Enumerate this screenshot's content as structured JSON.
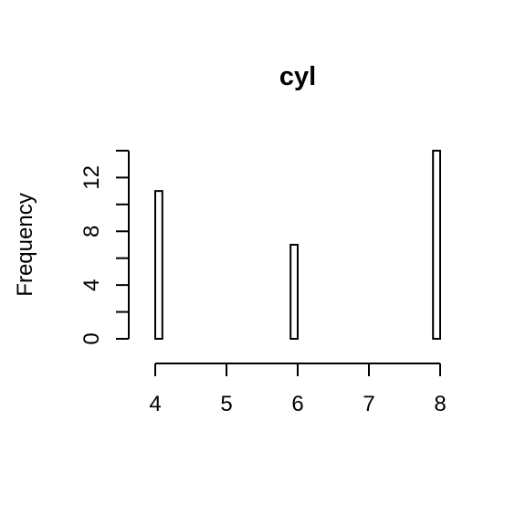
{
  "chart_data": {
    "type": "bar",
    "title": "cyl",
    "xlabel": "",
    "ylabel": "Frequency",
    "x_ticks": [
      4,
      5,
      6,
      7,
      8
    ],
    "y_ticks": [
      0,
      2,
      4,
      6,
      8,
      10,
      12,
      14
    ],
    "y_tick_labels": [
      "0",
      "",
      "4",
      "",
      "8",
      "",
      "12",
      ""
    ],
    "xlim": [
      4,
      8
    ],
    "ylim": [
      0,
      14
    ],
    "bins": [
      {
        "from": 4.0,
        "to": 4.1,
        "value": 11
      },
      {
        "from": 4.1,
        "to": 4.2,
        "value": 0
      },
      {
        "from": 4.2,
        "to": 4.3,
        "value": 0
      },
      {
        "from": 4.3,
        "to": 4.4,
        "value": 0
      },
      {
        "from": 4.4,
        "to": 4.5,
        "value": 0
      },
      {
        "from": 4.5,
        "to": 4.6,
        "value": 0
      },
      {
        "from": 4.6,
        "to": 4.7,
        "value": 0
      },
      {
        "from": 4.7,
        "to": 4.8,
        "value": 0
      },
      {
        "from": 4.8,
        "to": 4.9,
        "value": 0
      },
      {
        "from": 4.9,
        "to": 5.0,
        "value": 0
      },
      {
        "from": 5.0,
        "to": 5.1,
        "value": 0
      },
      {
        "from": 5.1,
        "to": 5.2,
        "value": 0
      },
      {
        "from": 5.2,
        "to": 5.3,
        "value": 0
      },
      {
        "from": 5.3,
        "to": 5.4,
        "value": 0
      },
      {
        "from": 5.4,
        "to": 5.5,
        "value": 0
      },
      {
        "from": 5.5,
        "to": 5.6,
        "value": 0
      },
      {
        "from": 5.6,
        "to": 5.7,
        "value": 0
      },
      {
        "from": 5.7,
        "to": 5.8,
        "value": 0
      },
      {
        "from": 5.8,
        "to": 5.9,
        "value": 0
      },
      {
        "from": 5.9,
        "to": 6.0,
        "value": 7
      },
      {
        "from": 6.0,
        "to": 6.1,
        "value": 0
      },
      {
        "from": 6.1,
        "to": 6.2,
        "value": 0
      },
      {
        "from": 6.2,
        "to": 6.3,
        "value": 0
      },
      {
        "from": 6.3,
        "to": 6.4,
        "value": 0
      },
      {
        "from": 6.4,
        "to": 6.5,
        "value": 0
      },
      {
        "from": 6.5,
        "to": 6.6,
        "value": 0
      },
      {
        "from": 6.6,
        "to": 6.7,
        "value": 0
      },
      {
        "from": 6.7,
        "to": 6.8,
        "value": 0
      },
      {
        "from": 6.8,
        "to": 6.9,
        "value": 0
      },
      {
        "from": 6.9,
        "to": 7.0,
        "value": 0
      },
      {
        "from": 7.0,
        "to": 7.1,
        "value": 0
      },
      {
        "from": 7.1,
        "to": 7.2,
        "value": 0
      },
      {
        "from": 7.2,
        "to": 7.3,
        "value": 0
      },
      {
        "from": 7.3,
        "to": 7.4,
        "value": 0
      },
      {
        "from": 7.4,
        "to": 7.5,
        "value": 0
      },
      {
        "from": 7.5,
        "to": 7.6,
        "value": 0
      },
      {
        "from": 7.6,
        "to": 7.7,
        "value": 0
      },
      {
        "from": 7.7,
        "to": 7.8,
        "value": 0
      },
      {
        "from": 7.8,
        "to": 7.9,
        "value": 0
      },
      {
        "from": 7.9,
        "to": 8.0,
        "value": 14
      }
    ],
    "grid": false,
    "colors": {
      "bar_fill": "#ffffff",
      "bar_stroke": "#000000",
      "background": "#ffffff"
    }
  }
}
